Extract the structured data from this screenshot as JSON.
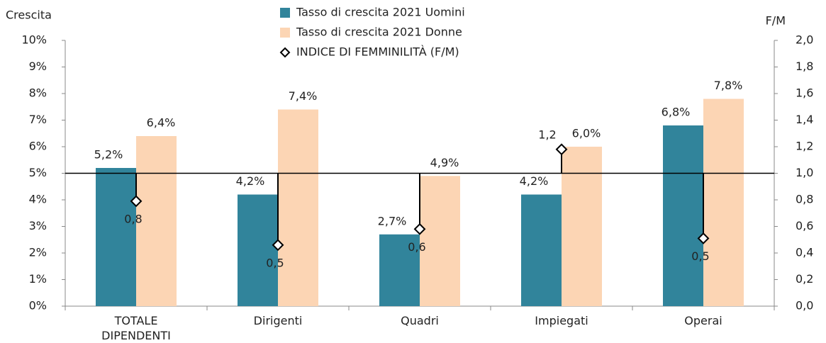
{
  "chart_data": {
    "type": "bar",
    "y_label": "Crescita",
    "y2_label": "F/M",
    "categories": [
      "TOTALE DIPENDENTI",
      "Dirigenti",
      "Quadri",
      "Impiegati",
      "Operai"
    ],
    "series": [
      {
        "name": "Tasso di crescita 2021 Uomini",
        "color": "#31849b",
        "values": [
          5.2,
          4.2,
          2.7,
          4.2,
          6.8
        ],
        "value_labels": [
          "5,2%",
          "4,2%",
          "2,7%",
          "4,2%",
          "6,8%"
        ]
      },
      {
        "name": "Tasso di crescita 2021 Donne",
        "color": "#fcd5b4",
        "values": [
          6.4,
          7.4,
          4.9,
          6.0,
          7.8
        ],
        "value_labels": [
          "6,4%",
          "7,4%",
          "4,9%",
          "6,0%",
          "7,8%"
        ]
      },
      {
        "name": "INDICE DI FEMMINILITÀ (F/M)",
        "type": "drop-marker",
        "axis": "y2",
        "color": "#000000",
        "values": [
          0.79,
          0.46,
          0.58,
          1.18,
          0.51
        ],
        "value_labels": [
          "0,8",
          "0,5",
          "0,6",
          "1,2",
          "0,5"
        ]
      }
    ],
    "ylim": [
      0,
      10
    ],
    "yticks": [
      {
        "value": 0,
        "label": "0%"
      },
      {
        "value": 1,
        "label": "1%"
      },
      {
        "value": 2,
        "label": "2%"
      },
      {
        "value": 3,
        "label": "3%"
      },
      {
        "value": 4,
        "label": "4%"
      },
      {
        "value": 5,
        "label": "5%"
      },
      {
        "value": 6,
        "label": "6%"
      },
      {
        "value": 7,
        "label": "7%"
      },
      {
        "value": 8,
        "label": "8%"
      },
      {
        "value": 9,
        "label": "9%"
      },
      {
        "value": 10,
        "label": "10%"
      }
    ],
    "y2lim": [
      0,
      2
    ],
    "y2ticks": [
      {
        "value": 0,
        "label": "0,0"
      },
      {
        "value": 0.2,
        "label": "0,2"
      },
      {
        "value": 0.4,
        "label": "0,4"
      },
      {
        "value": 0.6,
        "label": "0,6"
      },
      {
        "value": 0.8,
        "label": "0,8"
      },
      {
        "value": 1,
        "label": "1,0"
      },
      {
        "value": 1.2,
        "label": "1,2"
      },
      {
        "value": 1.4,
        "label": "1,4"
      },
      {
        "value": 1.6,
        "label": "1,6"
      },
      {
        "value": 1.8,
        "label": "1,8"
      },
      {
        "value": 2,
        "label": "2,0"
      }
    ],
    "y2_reference_line": 1,
    "grid": false
  }
}
